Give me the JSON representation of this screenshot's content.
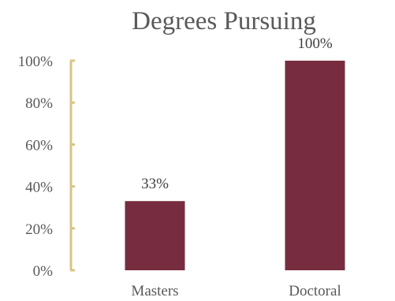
{
  "chart_data": {
    "type": "bar",
    "title": "Degrees Pursuing",
    "xlabel": "",
    "ylabel": "",
    "categories": [
      "Masters",
      "Doctoral"
    ],
    "values": [
      33,
      100
    ],
    "data_labels": [
      "33%",
      "100%"
    ],
    "yticks": [
      0,
      20,
      40,
      60,
      80,
      100
    ],
    "ytick_labels": [
      "0%",
      "20%",
      "40%",
      "60%",
      "80%",
      "100%"
    ],
    "ylim": [
      0,
      100
    ],
    "grid": false,
    "legend": "none",
    "colors": {
      "bar": "#772d3f",
      "axis": "#d8c486",
      "text": "#595959"
    }
  }
}
